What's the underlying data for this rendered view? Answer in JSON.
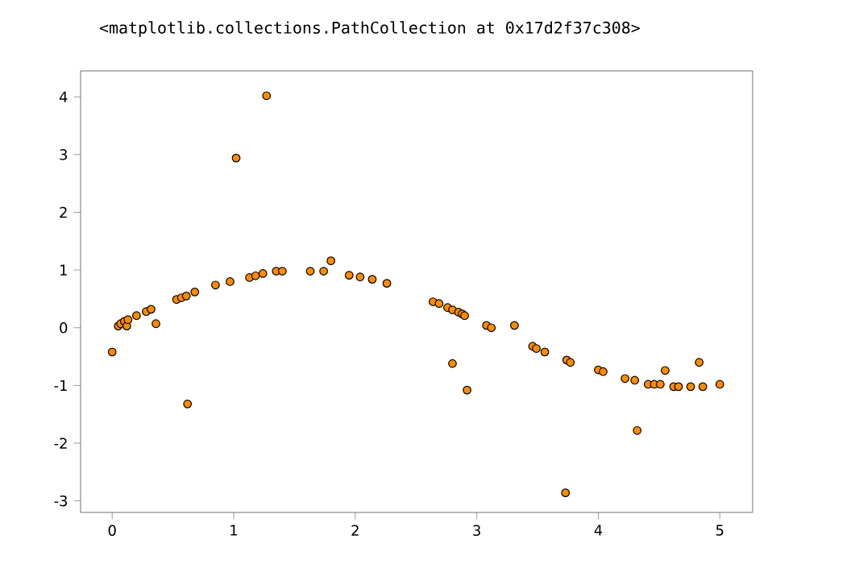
{
  "chart_data": {
    "type": "scatter",
    "annotations": [
      "<matplotlib.collections.PathCollection at 0x17d2f37c308>"
    ],
    "xlim": [
      -0.26,
      5.27
    ],
    "ylim": [
      -3.2,
      4.45
    ],
    "xticks": [
      0,
      1,
      2,
      3,
      4,
      5
    ],
    "yticks": [
      -3,
      -2,
      -1,
      0,
      1,
      2,
      3,
      4
    ],
    "marker": "circle",
    "grid": false,
    "series": [
      {
        "color": "#ff8c00",
        "x": [
          0.0,
          0.05,
          0.07,
          0.1,
          0.12,
          0.13,
          0.2,
          0.28,
          0.32,
          0.36,
          0.53,
          0.57,
          0.61,
          0.62,
          0.68,
          0.85,
          0.97,
          1.02,
          1.13,
          1.18,
          1.24,
          1.27,
          1.35,
          1.4,
          1.63,
          1.74,
          1.8,
          1.95,
          2.04,
          2.14,
          2.26,
          2.64,
          2.69,
          2.76,
          2.8,
          2.85,
          2.88,
          2.9,
          2.8,
          2.92,
          3.08,
          3.12,
          3.31,
          3.46,
          3.49,
          3.56,
          3.74,
          3.77,
          3.73,
          4.0,
          4.04,
          4.22,
          4.3,
          4.32,
          4.41,
          4.46,
          4.51,
          4.55,
          4.62,
          4.66,
          4.76,
          4.83,
          4.86,
          5.0
        ],
        "values": [
          -0.42,
          0.03,
          0.07,
          0.11,
          0.03,
          0.14,
          0.21,
          0.28,
          0.32,
          0.07,
          0.49,
          0.52,
          0.55,
          -1.32,
          0.62,
          0.74,
          0.8,
          2.94,
          0.87,
          0.9,
          0.94,
          4.02,
          0.98,
          0.98,
          0.98,
          0.98,
          1.16,
          0.91,
          0.88,
          0.84,
          0.77,
          0.45,
          0.42,
          0.35,
          0.31,
          0.27,
          0.24,
          0.21,
          -0.62,
          -1.08,
          0.04,
          0.0,
          0.04,
          -0.32,
          -0.36,
          -0.42,
          -0.56,
          -0.6,
          -2.86,
          -0.73,
          -0.76,
          -0.88,
          -0.91,
          -1.78,
          -0.98,
          -0.98,
          -0.98,
          -0.74,
          -1.02,
          -1.02,
          -1.02,
          -0.6,
          -1.02,
          -0.98
        ]
      }
    ]
  }
}
